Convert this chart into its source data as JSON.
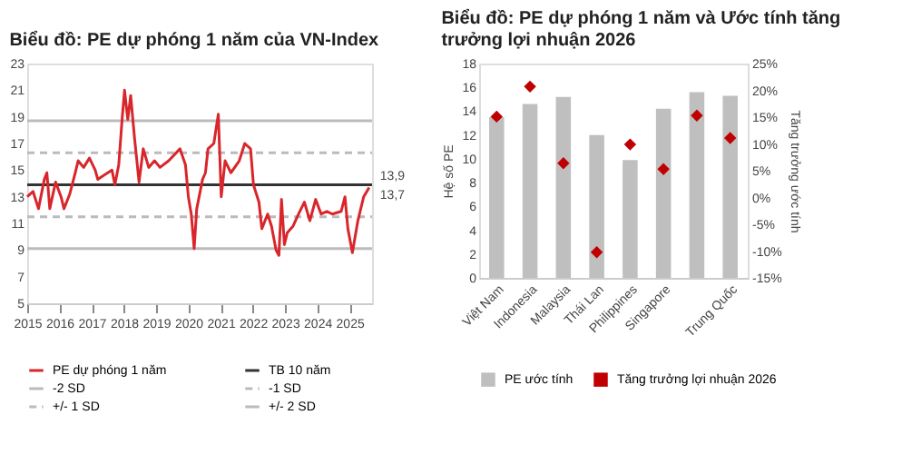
{
  "chart_data": [
    {
      "type": "line",
      "title": "Biểu đồ: PE dự phóng 1 năm của VN-Index",
      "xlim": [
        2015,
        2025.7
      ],
      "xticks": [
        2015,
        2016,
        2017,
        2018,
        2019,
        2020,
        2021,
        2022,
        2023,
        2024,
        2025
      ],
      "ylim": [
        5,
        23
      ],
      "yticks": [
        5,
        7,
        9,
        11,
        13,
        15,
        17,
        19,
        21,
        23
      ],
      "grid": false,
      "legend": "bottom",
      "line_style": "solid",
      "marker": "none",
      "series": [
        {
          "name": "PE dự phóng 1 năm",
          "color": "#d9262b",
          "x": [
            2015.0,
            2015.18,
            2015.35,
            2015.53,
            2015.61,
            2015.7,
            2015.88,
            2016.05,
            2016.14,
            2016.32,
            2016.49,
            2016.58,
            2016.75,
            2016.93,
            2017.11,
            2017.19,
            2017.37,
            2017.63,
            2017.72,
            2017.84,
            2017.95,
            2018.02,
            2018.12,
            2018.21,
            2018.33,
            2018.47,
            2018.6,
            2018.77,
            2018.95,
            2019.12,
            2019.39,
            2019.74,
            2019.91,
            2020.0,
            2020.09,
            2020.18,
            2020.26,
            2020.44,
            2020.53,
            2020.61,
            2020.79,
            2020.93,
            2021.02,
            2021.14,
            2021.32,
            2021.58,
            2021.75,
            2021.93,
            2022.02,
            2022.19,
            2022.28,
            2022.46,
            2022.58,
            2022.72,
            2022.81,
            2022.89,
            2022.98,
            2023.07,
            2023.25,
            2023.42,
            2023.6,
            2023.77,
            2023.95,
            2024.12,
            2024.3,
            2024.47,
            2024.74,
            2024.86,
            2024.95,
            2025.09,
            2025.26,
            2025.44,
            2025.61
          ],
          "values": [
            13.0,
            13.4,
            12.1,
            14.3,
            14.8,
            12.1,
            14.1,
            13.0,
            12.1,
            13.2,
            14.8,
            15.7,
            15.2,
            15.9,
            15.0,
            14.3,
            14.6,
            15.0,
            13.9,
            15.4,
            19.0,
            21.0,
            18.8,
            20.6,
            17.4,
            14.1,
            16.6,
            15.2,
            15.7,
            15.2,
            15.7,
            16.6,
            15.4,
            13.0,
            11.7,
            9.1,
            12.1,
            14.3,
            14.8,
            16.6,
            17.0,
            19.2,
            13.0,
            15.7,
            14.8,
            15.7,
            17.0,
            16.6,
            13.9,
            12.6,
            10.6,
            11.7,
            10.8,
            9.0,
            8.6,
            12.8,
            9.4,
            10.3,
            10.8,
            11.7,
            12.6,
            11.2,
            12.8,
            11.7,
            11.9,
            11.7,
            11.9,
            13.0,
            10.6,
            8.8,
            11.2,
            13.0,
            13.7
          ]
        }
      ],
      "ref_lines": [
        {
          "axis": "y",
          "value": 13.9,
          "label": "TB 10 năm",
          "color": "#333333",
          "line_style": "solid"
        },
        {
          "axis": "y",
          "value": 9.1,
          "label": "-2 SD",
          "color": "#bbbbbb",
          "line_style": "solid"
        },
        {
          "axis": "y",
          "value": 11.5,
          "label": "-1 SD",
          "color": "#bbbbbb",
          "line_style": "dashed"
        },
        {
          "axis": "y",
          "value": 16.3,
          "label": "+/- 1 SD",
          "color": "#bbbbbb",
          "line_style": "dashed"
        },
        {
          "axis": "y",
          "value": 18.7,
          "label": "+/- 2 SD",
          "color": "#bbbbbb",
          "line_style": "solid"
        }
      ],
      "annotations": [
        {
          "text": "13,9",
          "x": 2025.61,
          "y": 13.9
        },
        {
          "text": "13,7",
          "x": 2025.61,
          "y": 13.7
        }
      ]
    },
    {
      "type": "bar",
      "title": "Biểu đồ: PE dự phóng 1 năm và Ước tính tăng trưởng lợi nhuận 2026",
      "categories": [
        "Việt Nam",
        "Indonesia",
        "Malaysia",
        "Thái Lan",
        "Philippines",
        "Singapore",
        null,
        "Trung Quốc"
      ],
      "ylabel": "Hệ số PE",
      "y2label": "Tăng trưởng ước tính",
      "ylim": [
        0,
        18
      ],
      "yticks": [
        0,
        2,
        4,
        6,
        8,
        10,
        12,
        14,
        16,
        18
      ],
      "y2lim": [
        -15,
        25
      ],
      "y2ticks": [
        {
          "value": -15,
          "label": "-15%"
        },
        {
          "value": -10,
          "label": "-10%"
        },
        {
          "value": -5,
          "label": "-5%"
        },
        {
          "value": 0,
          "label": "0%"
        },
        {
          "value": 5,
          "label": "5%"
        },
        {
          "value": 10,
          "label": "10%"
        },
        {
          "value": 15,
          "label": "15%"
        },
        {
          "value": 20,
          "label": "20%"
        },
        {
          "value": 25,
          "label": "25%"
        }
      ],
      "grid": false,
      "legend": "bottom",
      "series": [
        {
          "name": "PE ước tính",
          "color": "#bfbfbf",
          "values": [
            13.5,
            14.6,
            15.2,
            12.0,
            9.9,
            14.2,
            15.6,
            15.3
          ]
        },
        {
          "name": "Tăng trưởng lợi nhuận 2026",
          "type": "scatter",
          "axis": "y2",
          "marker": "diamond",
          "color": "#c00000",
          "values": [
            15.1,
            20.7,
            6.4,
            -10.2,
            9.9,
            5.3,
            15.3,
            11.1
          ]
        }
      ]
    }
  ]
}
